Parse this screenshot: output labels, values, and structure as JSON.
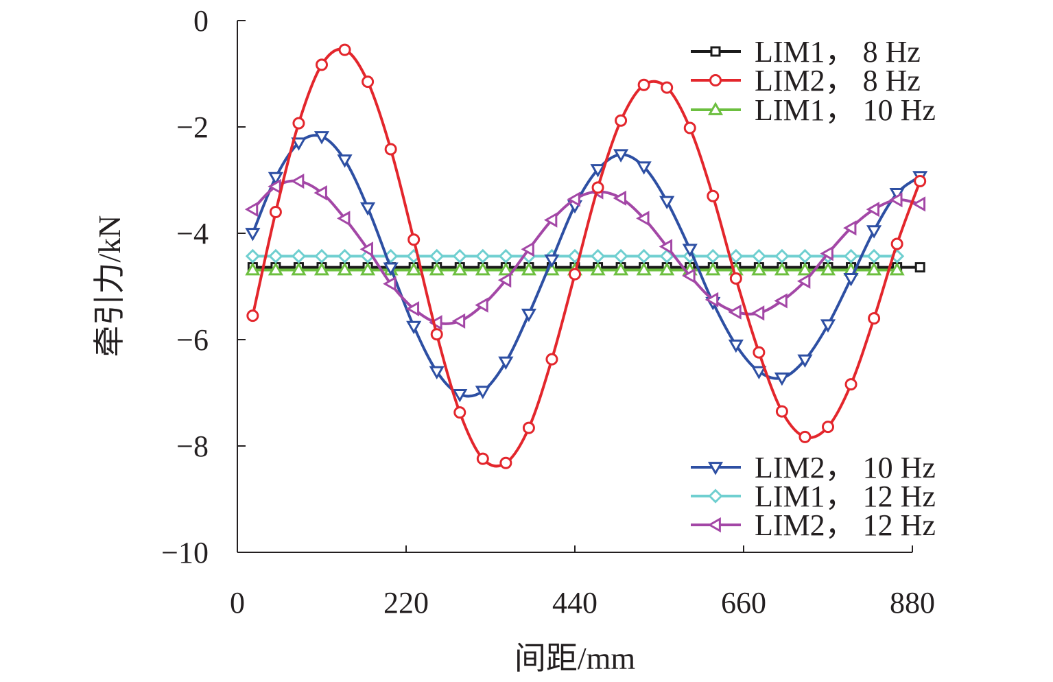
{
  "chart_data": {
    "type": "line",
    "title": "",
    "xlabel": "间距/mm",
    "ylabel": "牵引力/kN",
    "xlim": [
      0,
      880
    ],
    "ylim": [
      -10,
      0
    ],
    "xticks": [
      0,
      220,
      440,
      660,
      880
    ],
    "yticks": [
      0,
      -2,
      -4,
      -6,
      -8,
      -10
    ],
    "xtick_labels": [
      "0",
      "220",
      "440",
      "660",
      "880"
    ],
    "ytick_labels": [
      "0",
      "−2",
      "−4",
      "−6",
      "−8",
      "−10"
    ],
    "grid": false,
    "legend_placement": "top-right and bottom-right",
    "series": [
      {
        "name": "LIM1， 8 Hz",
        "color": "#1a1a1a",
        "marker": "square",
        "legend_group": "top",
        "x": [
          20,
          50,
          80,
          110,
          140,
          170,
          200,
          230,
          260,
          290,
          320,
          350,
          380,
          410,
          440,
          470,
          500,
          530,
          560,
          590,
          620,
          650,
          680,
          710,
          740,
          770,
          800,
          830,
          860,
          890
        ],
        "values": [
          -4.64,
          -4.64,
          -4.64,
          -4.64,
          -4.64,
          -4.64,
          -4.64,
          -4.64,
          -4.64,
          -4.64,
          -4.64,
          -4.64,
          -4.64,
          -4.64,
          -4.64,
          -4.64,
          -4.64,
          -4.64,
          -4.64,
          -4.64,
          -4.64,
          -4.64,
          -4.64,
          -4.64,
          -4.64,
          -4.64,
          -4.64,
          -4.64,
          -4.64,
          -4.64
        ]
      },
      {
        "name": "LIM2， 8 Hz",
        "color": "#e3262c",
        "marker": "circle",
        "legend_group": "top",
        "x": [
          20,
          50,
          80,
          110,
          140,
          170,
          200,
          230,
          260,
          290,
          320,
          350,
          380,
          410,
          440,
          470,
          500,
          530,
          560,
          590,
          620,
          650,
          680,
          710,
          740,
          770,
          800,
          830,
          860,
          890
        ],
        "values": [
          -5.55,
          -3.6,
          -1.93,
          -0.83,
          -0.55,
          -1.15,
          -2.42,
          -4.12,
          -5.9,
          -7.37,
          -8.24,
          -8.32,
          -7.66,
          -6.37,
          -4.77,
          -3.14,
          -1.88,
          -1.21,
          -1.26,
          -2.02,
          -3.3,
          -4.85,
          -6.24,
          -7.35,
          -7.83,
          -7.64,
          -6.84,
          -5.6,
          -4.2,
          -3.02
        ]
      },
      {
        "name": "LIM1， 10 Hz",
        "color": "#6cbf3f",
        "marker": "triangle-up",
        "legend_group": "top",
        "x": [
          20,
          50,
          80,
          110,
          140,
          170,
          200,
          230,
          260,
          290,
          320,
          350,
          380,
          410,
          440,
          470,
          500,
          530,
          560,
          590,
          620,
          650,
          680,
          710,
          740,
          770,
          800,
          830,
          860
        ],
        "values": [
          -4.69,
          -4.69,
          -4.69,
          -4.69,
          -4.69,
          -4.69,
          -4.69,
          -4.69,
          -4.69,
          -4.69,
          -4.69,
          -4.69,
          -4.69,
          -4.69,
          -4.69,
          -4.69,
          -4.69,
          -4.69,
          -4.69,
          -4.69,
          -4.69,
          -4.69,
          -4.69,
          -4.69,
          -4.69,
          -4.69,
          -4.69,
          -4.69,
          -4.69
        ]
      },
      {
        "name": "LIM2， 10 Hz",
        "color": "#2d4fa3",
        "marker": "triangle-down",
        "legend_group": "bottom",
        "x": [
          20,
          50,
          80,
          110,
          140,
          170,
          200,
          230,
          260,
          290,
          320,
          350,
          380,
          410,
          440,
          470,
          500,
          530,
          560,
          590,
          620,
          650,
          680,
          710,
          740,
          770,
          800,
          830,
          860,
          890
        ],
        "values": [
          -4.0,
          -2.95,
          -2.3,
          -2.18,
          -2.62,
          -3.52,
          -4.65,
          -5.75,
          -6.6,
          -7.03,
          -6.97,
          -6.42,
          -5.52,
          -4.5,
          -3.48,
          -2.8,
          -2.52,
          -2.75,
          -3.4,
          -4.3,
          -5.3,
          -6.1,
          -6.6,
          -6.72,
          -6.38,
          -5.72,
          -4.85,
          -3.95,
          -3.25,
          -2.93
        ]
      },
      {
        "name": "LIM1， 12 Hz",
        "color": "#6fcfd0",
        "marker": "diamond",
        "legend_group": "bottom",
        "x": [
          20,
          50,
          80,
          110,
          140,
          170,
          200,
          230,
          260,
          290,
          320,
          350,
          380,
          410,
          440,
          470,
          500,
          530,
          560,
          590,
          620,
          650,
          680,
          710,
          740,
          770,
          800,
          830,
          860
        ],
        "values": [
          -4.43,
          -4.43,
          -4.43,
          -4.43,
          -4.43,
          -4.43,
          -4.43,
          -4.43,
          -4.43,
          -4.43,
          -4.43,
          -4.43,
          -4.43,
          -4.43,
          -4.43,
          -4.43,
          -4.43,
          -4.43,
          -4.43,
          -4.43,
          -4.43,
          -4.43,
          -4.43,
          -4.43,
          -4.43,
          -4.43,
          -4.43,
          -4.43,
          -4.43
        ]
      },
      {
        "name": "LIM2， 12 Hz",
        "color": "#a347a6",
        "marker": "triangle-left",
        "legend_group": "bottom",
        "x": [
          20,
          50,
          80,
          110,
          140,
          170,
          200,
          230,
          260,
          290,
          320,
          350,
          380,
          410,
          440,
          470,
          500,
          530,
          560,
          590,
          620,
          650,
          680,
          710,
          740,
          770,
          800,
          830,
          860,
          890
        ],
        "values": [
          -3.55,
          -3.12,
          -3.02,
          -3.24,
          -3.72,
          -4.3,
          -4.95,
          -5.42,
          -5.68,
          -5.65,
          -5.35,
          -4.88,
          -4.3,
          -3.75,
          -3.36,
          -3.22,
          -3.34,
          -3.72,
          -4.25,
          -4.8,
          -5.25,
          -5.48,
          -5.5,
          -5.27,
          -4.9,
          -4.38,
          -3.9,
          -3.55,
          -3.37,
          -3.45
        ]
      }
    ]
  }
}
